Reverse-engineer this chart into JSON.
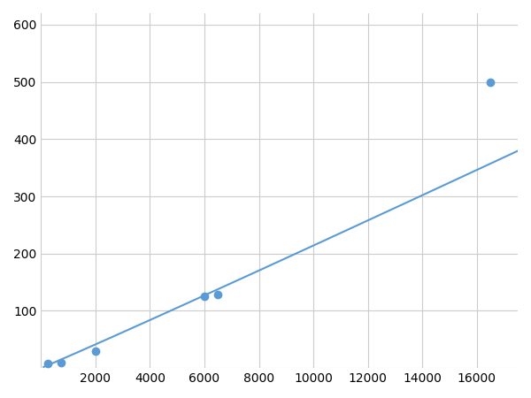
{
  "x_data": [
    250,
    750,
    2000,
    6000,
    6500,
    16500
  ],
  "y_data": [
    8,
    10,
    30,
    125,
    128,
    500
  ],
  "line_color": "#5b9bd5",
  "marker_color": "#5b9bd5",
  "marker_size": 6,
  "line_width": 1.5,
  "xlim": [
    0,
    17500
  ],
  "ylim": [
    0,
    620
  ],
  "xticks": [
    0,
    2000,
    4000,
    6000,
    8000,
    10000,
    12000,
    14000,
    16000
  ],
  "yticks": [
    0,
    100,
    200,
    300,
    400,
    500,
    600
  ],
  "grid_color": "#cccccc",
  "background_color": "#ffffff",
  "tick_fontsize": 10
}
